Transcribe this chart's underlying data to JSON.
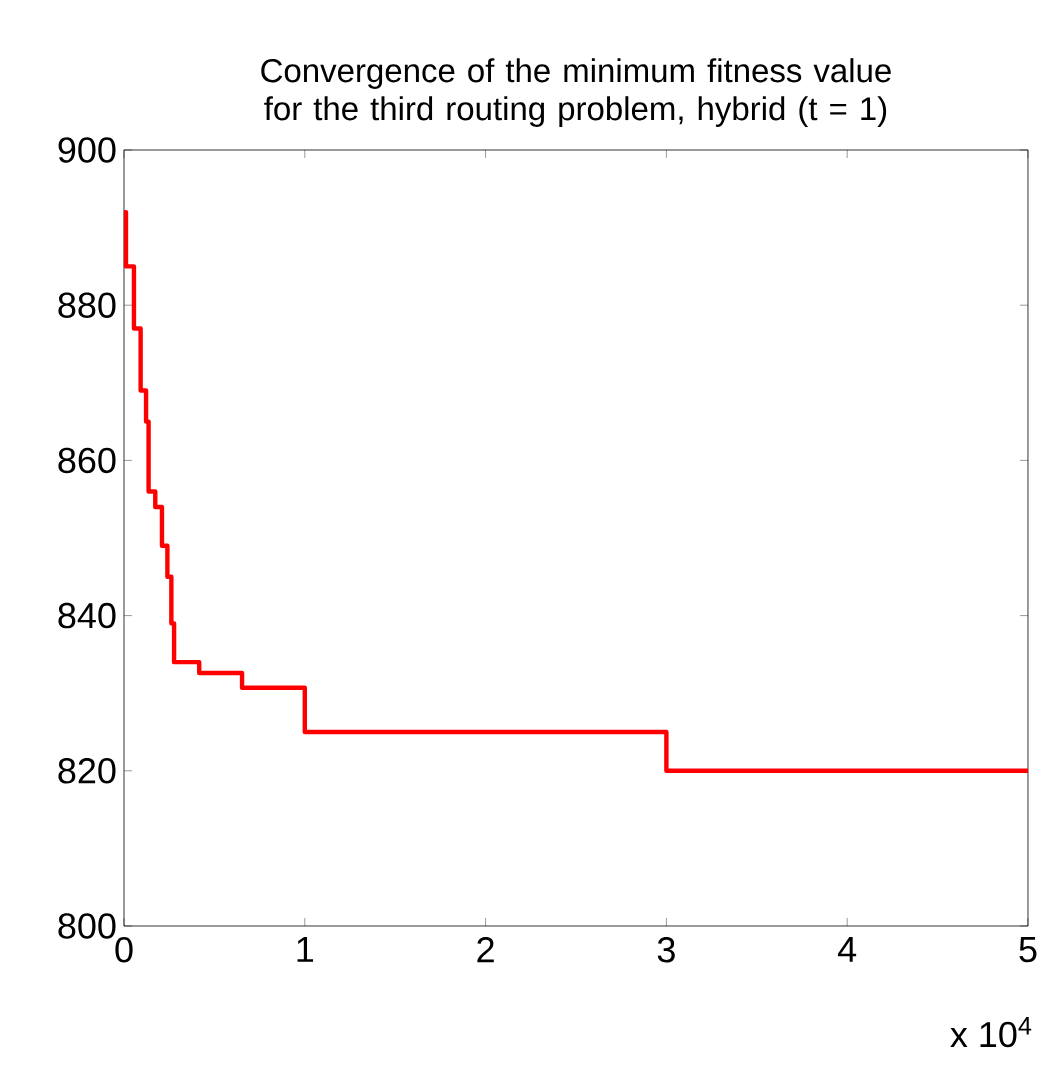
{
  "chart_data": {
    "type": "step",
    "title": "Convergence of the minimum fitness value for the third routing problem, hybrid (t = 1)",
    "x": [
      0,
      0.011,
      0.055,
      0.092,
      0.122,
      0.136,
      0.173,
      0.21,
      0.24,
      0.262,
      0.277,
      0.416,
      0.653,
      1,
      3,
      5
    ],
    "series": [
      {
        "color": "#ff0000",
        "values": [
          892,
          885,
          877,
          869,
          865,
          856,
          854,
          849,
          845,
          839,
          834,
          832.6,
          830.7,
          825,
          820,
          820
        ]
      }
    ],
    "xlim": [
      0,
      5
    ],
    "xticks": [
      0,
      1,
      2,
      3,
      4,
      5
    ],
    "ylim": [
      800,
      900
    ],
    "yticks": [
      800,
      820,
      840,
      860,
      880,
      900
    ],
    "annotations": [
      "x 10$^{4}$"
    ],
    "grid": false,
    "marker": "none",
    "line_style": "solid"
  }
}
